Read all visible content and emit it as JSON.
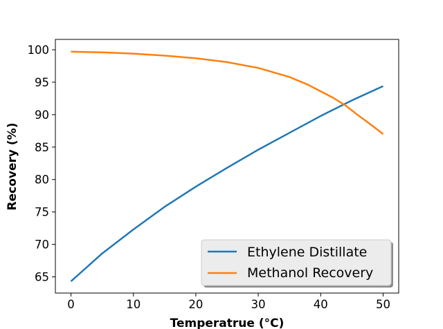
{
  "chart_data": {
    "type": "line",
    "title": "",
    "xlabel": "Temperatrue (°C)",
    "ylabel": "Recovery (%)",
    "xlim": [
      -2.5,
      52.5
    ],
    "ylim": [
      62.5,
      101.6
    ],
    "xticks": [
      0,
      10,
      20,
      30,
      40,
      50
    ],
    "yticks": [
      65,
      70,
      75,
      80,
      85,
      90,
      95,
      100
    ],
    "grid": false,
    "legend_position": "lower-right",
    "series": [
      {
        "name": "Ethylene Distillate",
        "color": "#1f77b4",
        "x": [
          0,
          5,
          10,
          15,
          20,
          25,
          30,
          35,
          40,
          45,
          50
        ],
        "y": [
          64.3,
          68.6,
          72.3,
          75.8,
          78.9,
          81.8,
          84.6,
          87.2,
          89.8,
          92.2,
          94.4
        ]
      },
      {
        "name": "Methanol Recovery",
        "color": "#ff7f0e",
        "x": [
          0,
          5,
          10,
          15,
          20,
          25,
          30,
          35,
          38,
          40,
          42,
          44,
          46,
          48,
          50
        ],
        "y": [
          99.7,
          99.6,
          99.4,
          99.1,
          98.7,
          98.1,
          97.2,
          95.8,
          94.6,
          93.6,
          92.6,
          91.4,
          89.9,
          88.5,
          87.0
        ]
      }
    ]
  }
}
